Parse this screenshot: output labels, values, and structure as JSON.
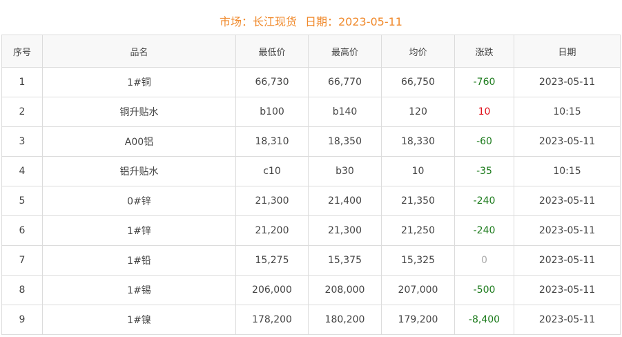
{
  "header": {
    "market_label": "市场：长江现货",
    "date_label": "日期：2023-05-11"
  },
  "colors": {
    "title": "#f0892b",
    "down": "#1b7a1b",
    "up": "#e0101a",
    "flat": "#aaaaaa"
  },
  "table": {
    "columns": [
      "序号",
      "品名",
      "最低价",
      "最高价",
      "均价",
      "涨跌",
      "日期"
    ],
    "rows": [
      [
        "1",
        "1#铜",
        "66,730",
        "66,770",
        "66,750",
        "-760",
        "2023-05-11"
      ],
      [
        "2",
        "铜升贴水",
        "b100",
        "b140",
        "120",
        "10",
        "10:15"
      ],
      [
        "3",
        "A00铝",
        "18,310",
        "18,350",
        "18,330",
        "-60",
        "2023-05-11"
      ],
      [
        "4",
        "铝升贴水",
        "c10",
        "b30",
        "10",
        "-35",
        "10:15"
      ],
      [
        "5",
        "0#锌",
        "21,300",
        "21,400",
        "21,350",
        "-240",
        "2023-05-11"
      ],
      [
        "6",
        "1#锌",
        "21,200",
        "21,300",
        "21,250",
        "-240",
        "2023-05-11"
      ],
      [
        "7",
        "1#铅",
        "15,275",
        "15,375",
        "15,325",
        "0",
        "2023-05-11"
      ],
      [
        "8",
        "1#锡",
        "206,000",
        "208,000",
        "207,000",
        "-500",
        "2023-05-11"
      ],
      [
        "9",
        "1#镍",
        "178,200",
        "180,200",
        "179,200",
        "-8,400",
        "2023-05-11"
      ]
    ]
  }
}
